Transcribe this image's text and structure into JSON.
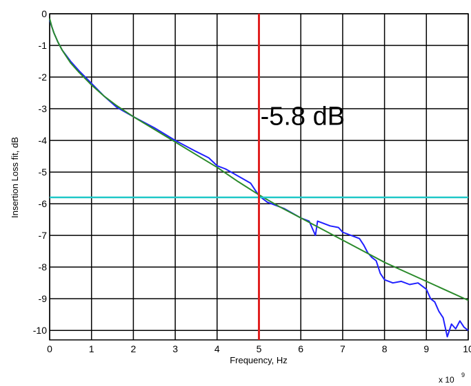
{
  "chart_data": {
    "type": "line",
    "title": "",
    "xlabel": "Frequency, Hz",
    "ylabel": "Insertion Loss fit, dB",
    "x_exponent_label": "x 10",
    "x_exponent_power": "9",
    "xlim": [
      0,
      10
    ],
    "ylim": [
      -10.3,
      0
    ],
    "x_ticks": [
      "0",
      "1",
      "2",
      "3",
      "4",
      "5",
      "6",
      "7",
      "8",
      "9",
      "10"
    ],
    "y_ticks": [
      "0",
      "-1",
      "-2",
      "-3",
      "-4",
      "-5",
      "-6",
      "-7",
      "-8",
      "-9",
      "-10"
    ],
    "grid": true,
    "series": [
      {
        "color": "#1f1fff",
        "x": [
          0,
          0.05,
          0.1,
          0.2,
          0.3,
          0.5,
          0.7,
          1.0,
          1.3,
          1.6,
          2.0,
          2.5,
          3.0,
          3.5,
          3.8,
          4.0,
          4.2,
          4.4,
          4.6,
          4.8,
          5.0,
          5.2,
          5.4,
          5.6,
          5.8,
          6.0,
          6.2,
          6.35,
          6.4,
          6.5,
          6.7,
          6.9,
          7.0,
          7.2,
          7.4,
          7.5,
          7.6,
          7.7,
          7.8,
          7.9,
          8.0,
          8.2,
          8.4,
          8.6,
          8.8,
          9.0,
          9.1,
          9.2,
          9.3,
          9.4,
          9.5,
          9.6,
          9.7,
          9.8,
          9.9,
          10.0
        ],
        "y": [
          -0.2,
          -0.4,
          -0.6,
          -0.9,
          -1.15,
          -1.5,
          -1.8,
          -2.2,
          -2.6,
          -2.95,
          -3.25,
          -3.6,
          -4.0,
          -4.35,
          -4.55,
          -4.8,
          -4.9,
          -5.05,
          -5.2,
          -5.35,
          -5.75,
          -5.95,
          -6.05,
          -6.15,
          -6.3,
          -6.45,
          -6.55,
          -7.0,
          -6.55,
          -6.6,
          -6.7,
          -6.75,
          -6.9,
          -7.0,
          -7.1,
          -7.3,
          -7.55,
          -7.7,
          -7.8,
          -8.2,
          -8.4,
          -8.5,
          -8.45,
          -8.55,
          -8.5,
          -8.7,
          -9.0,
          -9.1,
          -9.4,
          -9.6,
          -10.2,
          -9.8,
          -9.95,
          -9.7,
          -9.9,
          -10.0
        ]
      },
      {
        "color": "#2a8a2a",
        "x": [
          0,
          0.05,
          0.1,
          0.2,
          0.3,
          0.5,
          0.7,
          1.0,
          1.3,
          1.6,
          2.0,
          2.5,
          3.0,
          3.5,
          4.0,
          4.5,
          5.0,
          5.5,
          6.0,
          6.5,
          7.0,
          7.5,
          8.0,
          8.5,
          9.0,
          9.5,
          10.0
        ],
        "y": [
          -0.15,
          -0.4,
          -0.6,
          -0.9,
          -1.15,
          -1.55,
          -1.85,
          -2.25,
          -2.6,
          -2.9,
          -3.25,
          -3.65,
          -4.05,
          -4.45,
          -4.85,
          -5.3,
          -5.72,
          -6.1,
          -6.45,
          -6.8,
          -7.15,
          -7.5,
          -7.85,
          -8.15,
          -8.45,
          -8.75,
          -9.05
        ]
      },
      {
        "color": "#20c8c8",
        "x": [
          0,
          10
        ],
        "y": [
          -5.8,
          -5.8
        ]
      }
    ],
    "vline": {
      "x": 5,
      "color": "#e02020"
    },
    "annotation": {
      "text": "-5.8 dB",
      "x": 5.1,
      "y": -3.25
    }
  }
}
